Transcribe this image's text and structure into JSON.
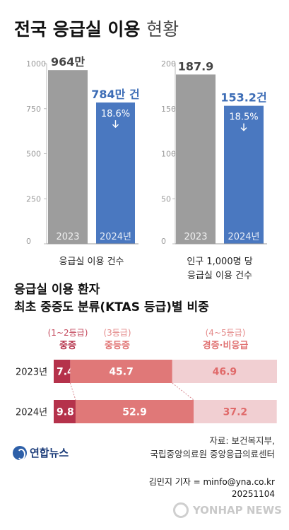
{
  "title": {
    "main": "전국 응급실 이용",
    "sub": "현황"
  },
  "chart_data": [
    {
      "type": "bar",
      "categories": [
        "2023",
        "2024년"
      ],
      "values": [
        964,
        784
      ],
      "data_labels": [
        "964만",
        "784만 건"
      ],
      "change_label": "18.6%",
      "xlabel": "응급실 이용 건수",
      "ylim": [
        0,
        1000
      ],
      "yticks": [
        "0",
        "250",
        "500",
        "750",
        "1000"
      ],
      "colors": [
        "#9d9d9d",
        "#4a78c0"
      ]
    },
    {
      "type": "bar",
      "categories": [
        "2023",
        "2024년"
      ],
      "values": [
        187.9,
        153.2
      ],
      "data_labels": [
        "187.9",
        "153.2건"
      ],
      "change_label": "18.5%",
      "xlabel": [
        "인구 1,000명 당",
        "응급실 이용 건수"
      ],
      "ylim": [
        0,
        200
      ],
      "yticks": [
        "0",
        "50",
        "100",
        "150",
        "200"
      ],
      "colors": [
        "#9d9d9d",
        "#4a78c0"
      ]
    },
    {
      "type": "bar",
      "orientation": "horizontal",
      "stacked": true,
      "title": [
        "응급실 이용 환자",
        "최초 중증도 분류(KTAS 등급)별 비중"
      ],
      "categories": [
        "2023년",
        "2024년"
      ],
      "series": [
        {
          "name": "중증",
          "range_label": "(1~2등급)",
          "values": [
            7.4,
            9.8
          ],
          "labels": [
            "7.4%",
            "9.8"
          ],
          "color": "#b5324b"
        },
        {
          "name": "중등증",
          "range_label": "(3등급)",
          "values": [
            45.7,
            52.9
          ],
          "labels": [
            "45.7",
            "52.9"
          ],
          "color": "#e07878"
        },
        {
          "name": "경증·비응급",
          "range_label": "(4~5등급)",
          "values": [
            46.9,
            37.2
          ],
          "labels": [
            "46.9",
            "37.2"
          ],
          "color": "#f1cfd2"
        }
      ],
      "xlim": [
        0,
        100
      ]
    }
  ],
  "source": {
    "line1": "자료: 보건복지부,",
    "line2": "국립중앙의료원 중앙응급의료센터"
  },
  "logo": "연합뉴스",
  "credit": {
    "reporter": "김민지 기자 = minfo@yna.co.kr",
    "date": "20251104"
  },
  "watermark": "YONHAP NEWS",
  "arrow_icon": "down-arrow-icon"
}
